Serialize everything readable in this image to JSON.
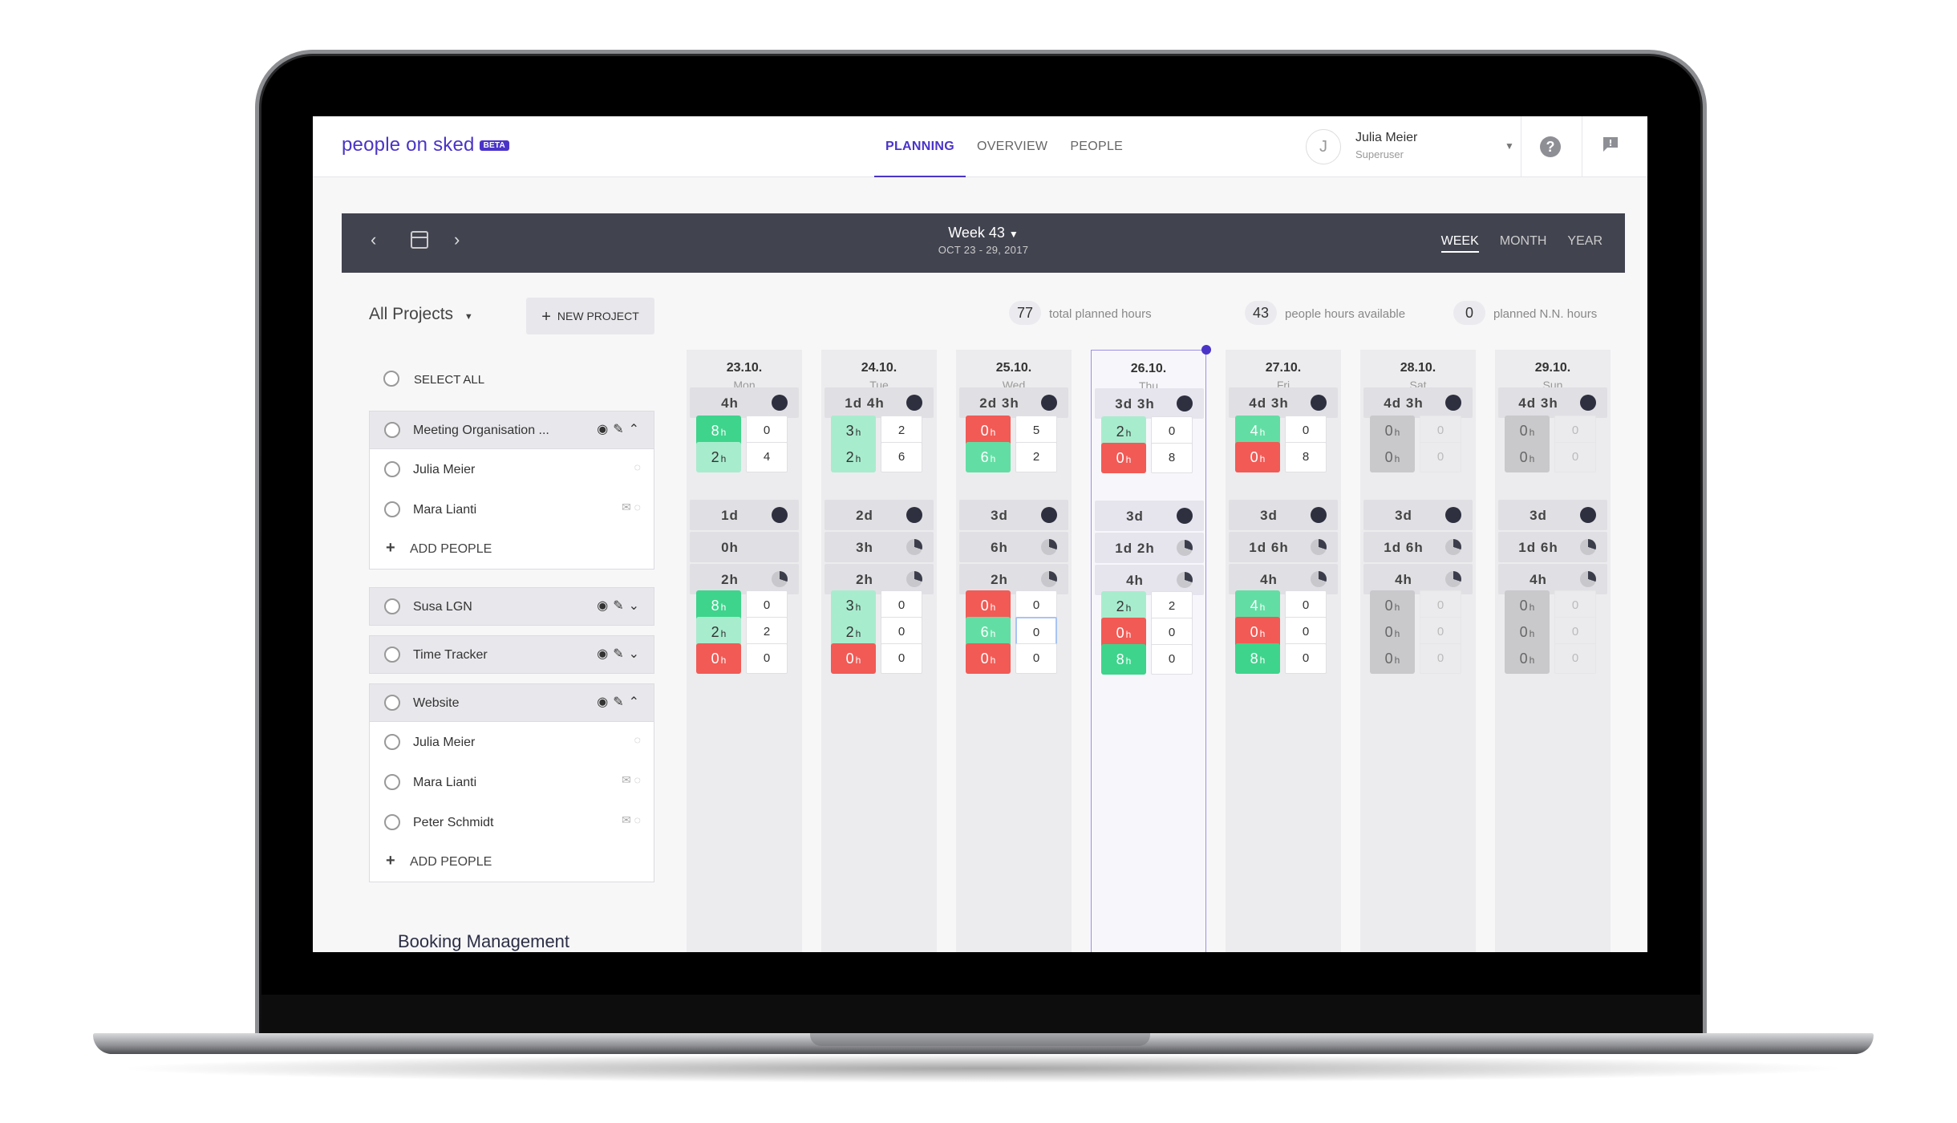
{
  "app": {
    "name": "people on sked",
    "badge": "BETA"
  },
  "nav": {
    "items": [
      "PLANNING",
      "OVERVIEW",
      "PEOPLE"
    ],
    "active": "PLANNING"
  },
  "user": {
    "initial": "J",
    "name": "Julia Meier",
    "role": "Superuser"
  },
  "week": {
    "title": "Week 43",
    "range": "OCT 23 - 29, 2017",
    "views": [
      "WEEK",
      "MONTH",
      "YEAR"
    ],
    "selected": "WEEK"
  },
  "toolbar": {
    "all_projects": "All Projects",
    "new_project": "NEW PROJECT"
  },
  "stats": [
    {
      "value": "77",
      "label": "total planned hours"
    },
    {
      "value": "43",
      "label": "people hours available"
    },
    {
      "value": "0",
      "label": "planned N.N. hours"
    }
  ],
  "select_all": "SELECT ALL",
  "add_people": "ADD PEOPLE",
  "booking": "Booking Management",
  "projects": [
    {
      "name": "Meeting Organisation ...",
      "expanded": true,
      "people": [
        {
          "name": "Julia Meier"
        },
        {
          "name": "Mara Lianti"
        }
      ]
    },
    {
      "name": "Susa LGN",
      "expanded": false,
      "people": []
    },
    {
      "name": "Time Tracker",
      "expanded": false,
      "people": []
    },
    {
      "name": "Website",
      "expanded": true,
      "people": [
        {
          "name": "Julia Meier"
        },
        {
          "name": "Mara Lianti"
        },
        {
          "name": "Peter Schmidt"
        }
      ]
    }
  ],
  "days": [
    {
      "date": "23.10.",
      "name": "Mon",
      "today": false,
      "totals": [
        "4h",
        "1d",
        "0h",
        "2h"
      ],
      "dots": [
        "dark",
        "dark",
        "none",
        "pie"
      ],
      "meeting": [
        {
          "h": "8",
          "cls": "g1",
          "n": "0"
        },
        {
          "h": "2",
          "cls": "g2",
          "n": "4"
        }
      ],
      "website": [
        {
          "h": "8",
          "cls": "g1",
          "n": "0"
        },
        {
          "h": "2",
          "cls": "g2",
          "n": "2"
        },
        {
          "h": "0",
          "cls": "red",
          "n": "0"
        }
      ]
    },
    {
      "date": "24.10.",
      "name": "Tue",
      "today": false,
      "totals": [
        "1d 4h",
        "2d",
        "3h",
        "2h"
      ],
      "dots": [
        "dark",
        "dark",
        "pie",
        "pie"
      ],
      "meeting": [
        {
          "h": "3",
          "cls": "g2",
          "n": "2"
        },
        {
          "h": "2",
          "cls": "g2",
          "n": "6"
        }
      ],
      "website": [
        {
          "h": "3",
          "cls": "g2",
          "n": "0"
        },
        {
          "h": "2",
          "cls": "g2",
          "n": "0"
        },
        {
          "h": "0",
          "cls": "red",
          "n": "0"
        }
      ]
    },
    {
      "date": "25.10.",
      "name": "Wed",
      "today": false,
      "totals": [
        "2d 3h",
        "3d",
        "6h",
        "2h"
      ],
      "dots": [
        "dark",
        "dark",
        "pie",
        "pie"
      ],
      "meeting": [
        {
          "h": "0",
          "cls": "red",
          "n": "5"
        },
        {
          "h": "6",
          "cls": "g3",
          "n": "2"
        }
      ],
      "website": [
        {
          "h": "0",
          "cls": "red",
          "n": "0"
        },
        {
          "h": "6",
          "cls": "g3",
          "n": "0",
          "focus": true
        },
        {
          "h": "0",
          "cls": "red",
          "n": "0"
        }
      ]
    },
    {
      "date": "26.10.",
      "name": "Thu",
      "today": true,
      "totals": [
        "3d 3h",
        "3d",
        "1d 2h",
        "4h"
      ],
      "dots": [
        "dark",
        "dark",
        "pie",
        "pie"
      ],
      "meeting": [
        {
          "h": "2",
          "cls": "g2",
          "n": "0"
        },
        {
          "h": "0",
          "cls": "red",
          "n": "8"
        }
      ],
      "website": [
        {
          "h": "2",
          "cls": "g2",
          "n": "2"
        },
        {
          "h": "0",
          "cls": "red",
          "n": "0"
        },
        {
          "h": "8",
          "cls": "g1",
          "n": "0"
        }
      ]
    },
    {
      "date": "27.10.",
      "name": "Fri",
      "today": false,
      "totals": [
        "4d 3h",
        "3d",
        "1d 6h",
        "4h"
      ],
      "dots": [
        "dark",
        "dark",
        "pie",
        "pie"
      ],
      "meeting": [
        {
          "h": "4",
          "cls": "g3",
          "n": "0"
        },
        {
          "h": "0",
          "cls": "red",
          "n": "8"
        }
      ],
      "website": [
        {
          "h": "4",
          "cls": "g3",
          "n": "0"
        },
        {
          "h": "0",
          "cls": "red",
          "n": "0"
        },
        {
          "h": "8",
          "cls": "g1",
          "n": "0"
        }
      ]
    },
    {
      "date": "28.10.",
      "name": "Sat",
      "today": false,
      "totals": [
        "4d 3h",
        "3d",
        "1d 6h",
        "4h"
      ],
      "dots": [
        "dark",
        "dark",
        "pie",
        "pie"
      ],
      "meeting": [
        {
          "h": "0",
          "cls": "grey",
          "n": "0",
          "dim": true
        },
        {
          "h": "0",
          "cls": "grey",
          "n": "0",
          "dim": true
        }
      ],
      "website": [
        {
          "h": "0",
          "cls": "grey",
          "n": "0",
          "dim": true
        },
        {
          "h": "0",
          "cls": "grey",
          "n": "0",
          "dim": true
        },
        {
          "h": "0",
          "cls": "grey",
          "n": "0",
          "dim": true
        }
      ]
    },
    {
      "date": "29.10.",
      "name": "Sun",
      "today": false,
      "totals": [
        "4d 3h",
        "3d",
        "1d 6h",
        "4h"
      ],
      "dots": [
        "dark",
        "dark",
        "pie",
        "pie"
      ],
      "meeting": [
        {
          "h": "0",
          "cls": "grey",
          "n": "0",
          "dim": true
        },
        {
          "h": "0",
          "cls": "grey",
          "n": "0",
          "dim": true
        }
      ],
      "website": [
        {
          "h": "0",
          "cls": "grey",
          "n": "0",
          "dim": true
        },
        {
          "h": "0",
          "cls": "grey",
          "n": "0",
          "dim": true
        },
        {
          "h": "0",
          "cls": "grey",
          "n": "0",
          "dim": true
        }
      ]
    }
  ],
  "unit_h": "h",
  "colors": {
    "accent": "#4a34c8",
    "bar": "#41434f",
    "green": "#3ed48c",
    "red": "#f25a55"
  }
}
